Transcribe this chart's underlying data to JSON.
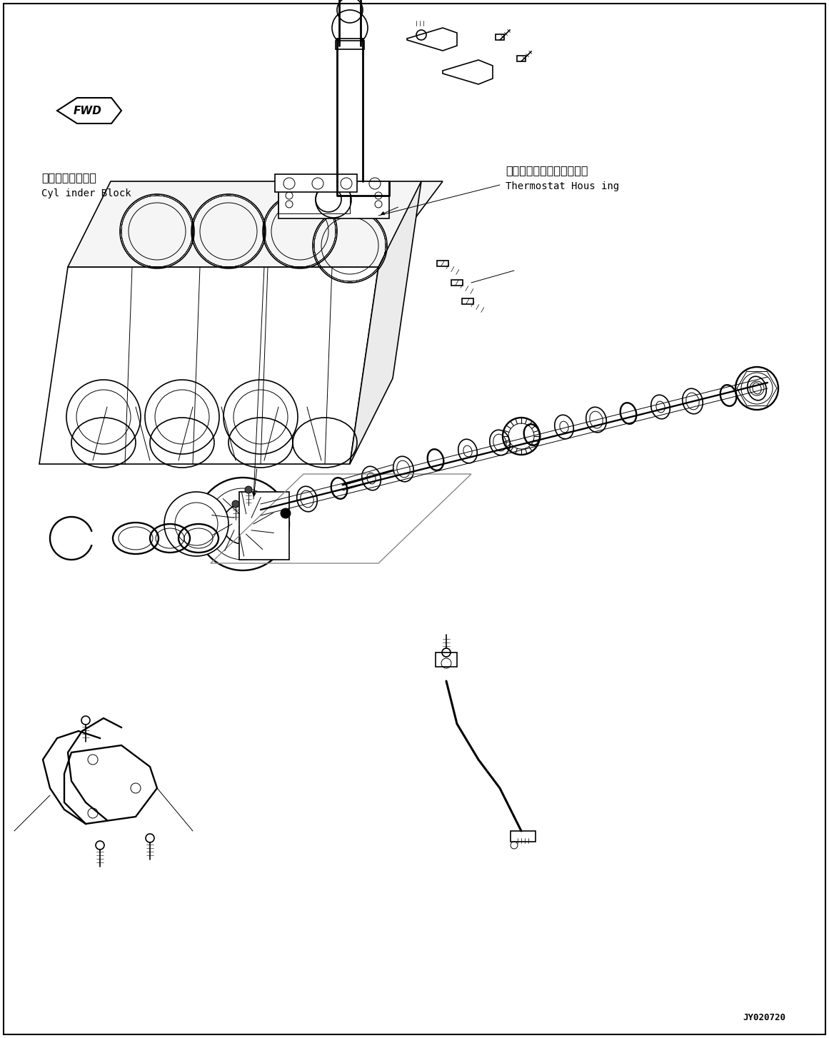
{
  "figure_width": 11.61,
  "figure_height": 14.54,
  "dpi": 100,
  "background_color": "#ffffff",
  "line_color": "#000000",
  "text_color": "#000000",
  "title_jp": "サーモスタットハウジング",
  "title_en": "Thermostat Hous ing",
  "label_cylinder_jp": "シリンダブロック",
  "label_cylinder_en": "Cyl inder Block",
  "code": "JY020720",
  "fwd_label": "FWD",
  "border_lw": 1.5,
  "main_lw": 1.2,
  "thin_lw": 0.7,
  "thick_lw": 2.0
}
